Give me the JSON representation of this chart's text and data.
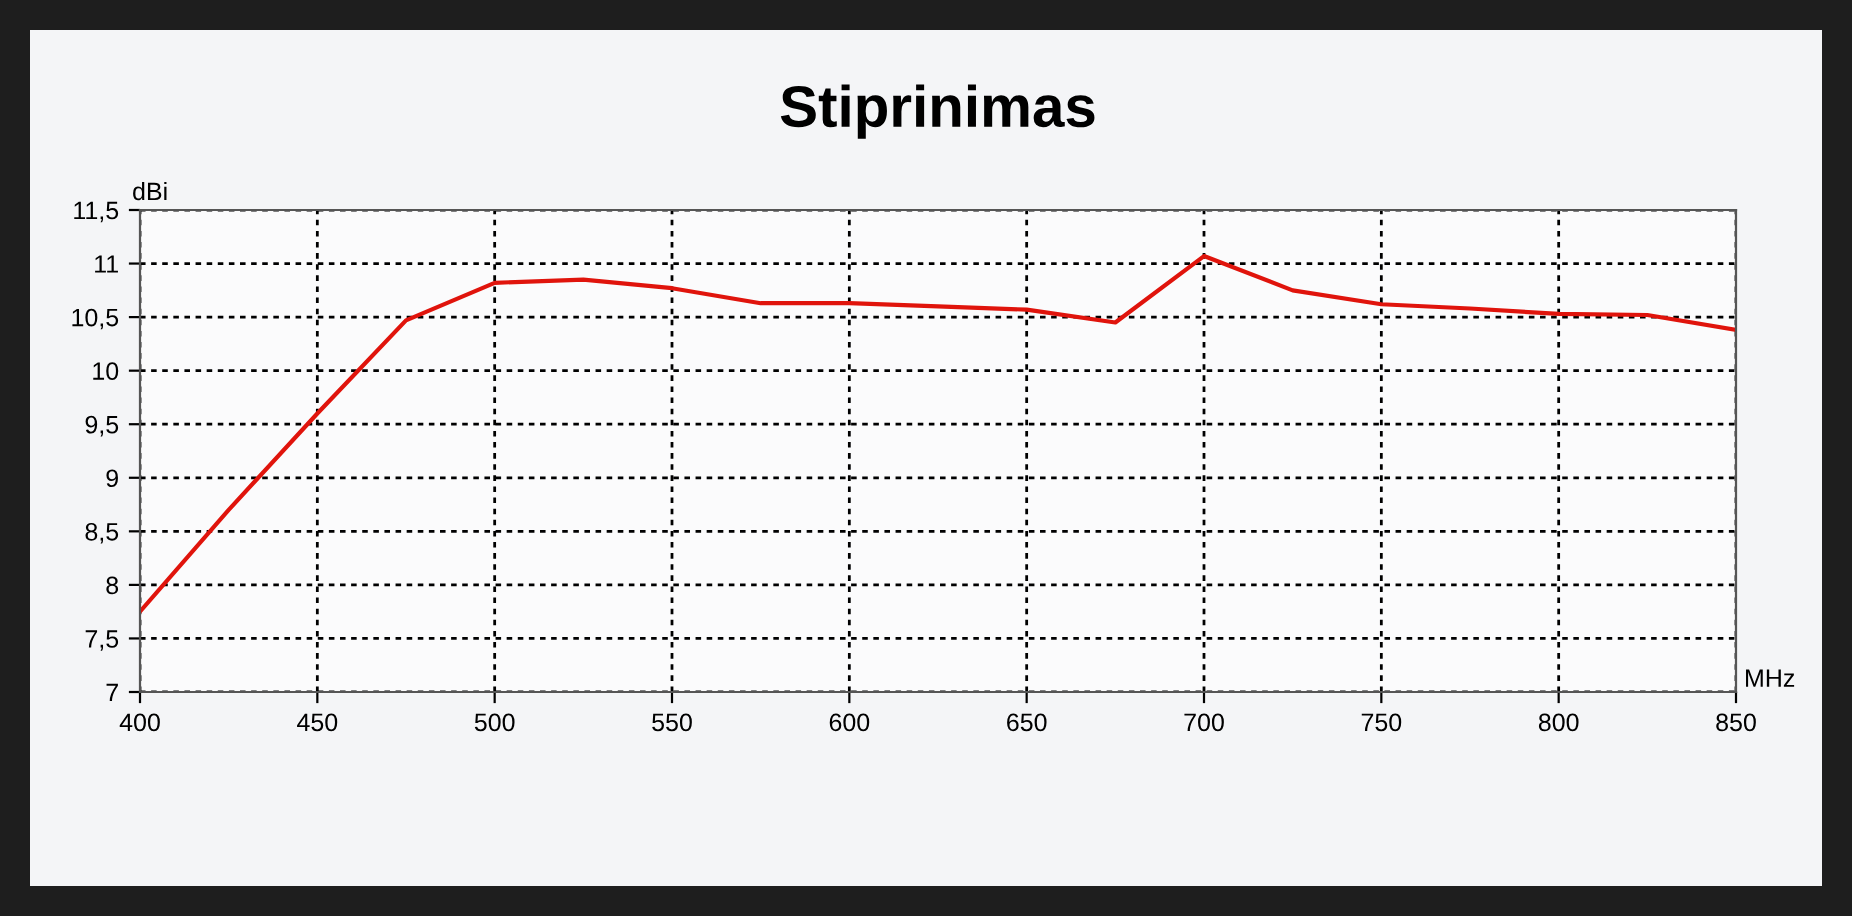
{
  "chart_data": {
    "type": "line",
    "title": "Stiprinimas",
    "xlabel": "MHz",
    "ylabel": "dBi",
    "x": [
      400,
      425,
      450,
      475,
      500,
      525,
      550,
      575,
      600,
      625,
      650,
      675,
      700,
      725,
      750,
      775,
      800,
      825,
      850
    ],
    "series": [
      {
        "color": "#e0140c",
        "values": [
          7.75,
          8.7,
          9.6,
          10.47,
          10.82,
          10.85,
          10.77,
          10.63,
          10.63,
          10.6,
          10.57,
          10.45,
          11.07,
          10.75,
          10.62,
          10.58,
          10.53,
          10.52,
          10.38
        ]
      }
    ],
    "xlim": [
      400,
      850
    ],
    "xticks": [
      400,
      450,
      500,
      550,
      600,
      650,
      700,
      750,
      800,
      850
    ],
    "ylim": [
      7,
      11.5
    ],
    "yticks": [
      7,
      {
        "value": 7.5,
        "label": "7,5"
      },
      8,
      {
        "value": 8.5,
        "label": "8,5"
      },
      9,
      {
        "value": 9.5,
        "label": "9,5"
      },
      10,
      {
        "value": 10.5,
        "label": "10,5"
      },
      11,
      {
        "value": 11.5,
        "label": "11,5"
      }
    ],
    "grid": true,
    "line_style": "solid",
    "marker": "none",
    "legend": false
  }
}
